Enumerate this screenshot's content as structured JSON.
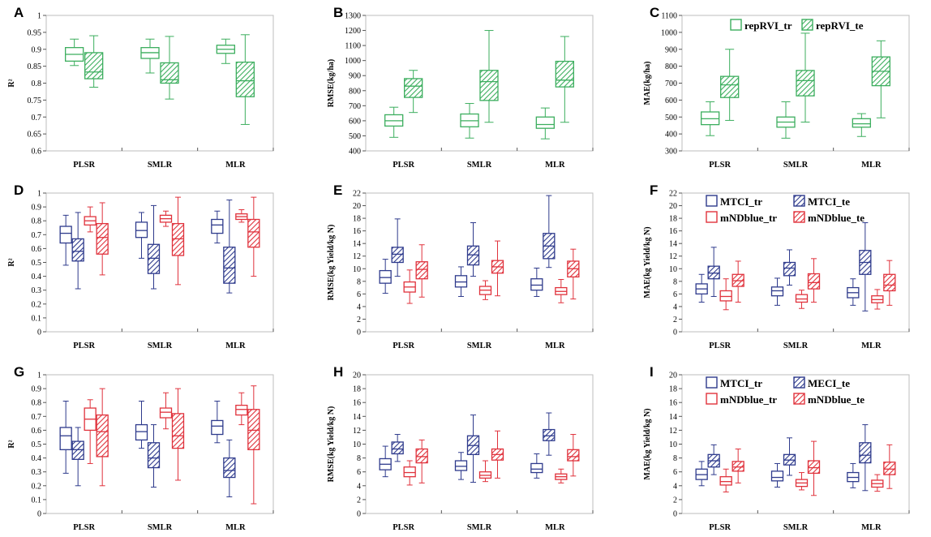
{
  "colors": {
    "green": "#3cae5e",
    "blue": "#2e3a8c",
    "red": "#e0323c"
  },
  "chart_data": [
    {
      "panel": "A",
      "type": "box",
      "title": "",
      "xlabel": "",
      "ylabel": "R²",
      "ylim": [
        0.6,
        1.0
      ],
      "yticks": [
        "0.6",
        "0.65",
        "0.7",
        "0.75",
        "0.8",
        "0.85",
        "0.9",
        "0.95",
        "1"
      ],
      "categories": [
        "PLSR",
        "SMLR",
        "MLR"
      ],
      "series": [
        {
          "name": "repRVI_tr",
          "color": "green",
          "hatch": false,
          "boxes": [
            [
              0.852,
              0.865,
              0.885,
              0.905,
              0.93
            ],
            [
              0.83,
              0.873,
              0.89,
              0.905,
              0.93
            ],
            [
              0.858,
              0.888,
              0.9,
              0.912,
              0.93
            ]
          ]
        },
        {
          "name": "repRVI_te",
          "color": "green",
          "hatch": true,
          "boxes": [
            [
              0.788,
              0.813,
              0.833,
              0.89,
              0.94
            ],
            [
              0.753,
              0.8,
              0.81,
              0.86,
              0.938
            ],
            [
              0.678,
              0.76,
              0.807,
              0.862,
              0.943
            ]
          ]
        }
      ]
    },
    {
      "panel": "B",
      "type": "box",
      "title": "",
      "xlabel": "",
      "ylabel": "RMSE(kg/ha)",
      "ylim": [
        400,
        1300
      ],
      "yticks": [
        "400",
        "500",
        "600",
        "700",
        "800",
        "900",
        "1000",
        "1100",
        "1200",
        "1300"
      ],
      "categories": [
        "PLSR",
        "SMLR",
        "MLR"
      ],
      "series": [
        {
          "name": "repRVI_tr",
          "color": "green",
          "hatch": false,
          "boxes": [
            [
              490,
              565,
              600,
              640,
              690
            ],
            [
              485,
              560,
              600,
              645,
              715
            ],
            [
              480,
              550,
              575,
              625,
              685
            ]
          ]
        },
        {
          "name": "repRVI_te",
          "color": "green",
          "hatch": true,
          "boxes": [
            [
              655,
              755,
              830,
              880,
              935
            ],
            [
              590,
              735,
              860,
              935,
              1200
            ],
            [
              590,
              825,
              870,
              995,
              1160
            ]
          ]
        }
      ]
    },
    {
      "panel": "C",
      "type": "box",
      "title": "",
      "xlabel": "",
      "ylabel": "MAE(kg/ha)",
      "ylim": [
        300,
        1100
      ],
      "yticks": [
        "300",
        "400",
        "500",
        "600",
        "700",
        "800",
        "900",
        "1000",
        "1100"
      ],
      "categories": [
        "PLSR",
        "SMLR",
        "MLR"
      ],
      "series": [
        {
          "name": "repRVI_tr",
          "color": "green",
          "hatch": false,
          "boxes": [
            [
              390,
              455,
              490,
              530,
              590
            ],
            [
              375,
              440,
              470,
              500,
              590
            ],
            [
              385,
              440,
              460,
              490,
              520
            ]
          ]
        },
        {
          "name": "repRVI_te",
          "color": "green",
          "hatch": true,
          "boxes": [
            [
              480,
              615,
              690,
              740,
              900
            ],
            [
              470,
              625,
              715,
              775,
              995
            ],
            [
              495,
              685,
              770,
              855,
              950
            ]
          ]
        }
      ]
    },
    {
      "panel": "D",
      "type": "box",
      "title": "",
      "xlabel": "",
      "ylabel": "R²",
      "ylim": [
        0,
        1
      ],
      "yticks": [
        "0",
        "0.1",
        "0.2",
        "0.3",
        "0.4",
        "0.5",
        "0.6",
        "0.7",
        "0.8",
        "0.9",
        "1"
      ],
      "categories": [
        "PLSR",
        "SMLR",
        "MLR"
      ],
      "series": [
        {
          "name": "MTCI_tr",
          "color": "blue",
          "hatch": false,
          "boxes": [
            [
              0.48,
              0.64,
              0.71,
              0.76,
              0.84
            ],
            [
              0.53,
              0.68,
              0.73,
              0.79,
              0.86
            ],
            [
              0.64,
              0.71,
              0.77,
              0.81,
              0.87
            ]
          ]
        },
        {
          "name": "MTCI_te",
          "color": "blue",
          "hatch": true,
          "boxes": [
            [
              0.31,
              0.51,
              0.58,
              0.67,
              0.86
            ],
            [
              0.31,
              0.42,
              0.53,
              0.63,
              0.91
            ],
            [
              0.28,
              0.35,
              0.46,
              0.61,
              0.95
            ]
          ]
        },
        {
          "name": "mNDblue_tr",
          "color": "red",
          "hatch": false,
          "boxes": [
            [
              0.72,
              0.77,
              0.8,
              0.83,
              0.9
            ],
            [
              0.76,
              0.79,
              0.815,
              0.84,
              0.87
            ],
            [
              0.79,
              0.81,
              0.83,
              0.85,
              0.88
            ]
          ]
        },
        {
          "name": "mNDblue_te",
          "color": "red",
          "hatch": true,
          "boxes": [
            [
              0.41,
              0.56,
              0.68,
              0.78,
              0.93
            ],
            [
              0.34,
              0.55,
              0.67,
              0.78,
              0.97
            ],
            [
              0.4,
              0.61,
              0.72,
              0.81,
              0.97
            ]
          ]
        }
      ]
    },
    {
      "panel": "E",
      "type": "box",
      "title": "",
      "xlabel": "",
      "ylabel": "RMSE(kg Yield/kg N)",
      "ylim": [
        0,
        22
      ],
      "yticks": [
        "0",
        "2",
        "4",
        "6",
        "8",
        "10",
        "12",
        "14",
        "16",
        "18",
        "20",
        "22"
      ],
      "categories": [
        "PLSR",
        "SMLR",
        "MLR"
      ],
      "series": [
        {
          "name": "MTCI_tr",
          "color": "blue",
          "hatch": false,
          "boxes": [
            [
              6.1,
              7.7,
              8.6,
              9.7,
              11.5
            ],
            [
              5.6,
              7.1,
              7.9,
              8.9,
              10.3
            ],
            [
              5.6,
              6.6,
              7.4,
              8.4,
              10.1
            ]
          ]
        },
        {
          "name": "MTCI_te",
          "color": "blue",
          "hatch": true,
          "boxes": [
            [
              8.8,
              11.0,
              12.3,
              13.4,
              17.9
            ],
            [
              8.8,
              10.6,
              12.2,
              13.6,
              17.3
            ],
            [
              10.2,
              11.6,
              13.6,
              15.6,
              21.6
            ]
          ]
        },
        {
          "name": "mNDblue_tr",
          "color": "red",
          "hatch": false,
          "boxes": [
            [
              4.5,
              6.3,
              7.1,
              7.9,
              9.8
            ],
            [
              5.1,
              5.9,
              6.6,
              7.2,
              8.1
            ],
            [
              4.6,
              5.9,
              6.4,
              7.0,
              8.3
            ]
          ]
        },
        {
          "name": "mNDblue_te",
          "color": "red",
          "hatch": true,
          "boxes": [
            [
              5.5,
              8.4,
              9.9,
              11.1,
              13.8
            ],
            [
              5.7,
              9.3,
              10.3,
              11.3,
              14.4
            ],
            [
              5.2,
              8.7,
              10.0,
              11.2,
              13.1
            ]
          ]
        }
      ]
    },
    {
      "panel": "F",
      "type": "box",
      "title": "",
      "xlabel": "",
      "ylabel": "MAE(kg Yield/kg N)",
      "ylim": [
        0,
        22
      ],
      "yticks": [
        "0",
        "2",
        "4",
        "6",
        "8",
        "10",
        "12",
        "14",
        "16",
        "18",
        "20",
        "22"
      ],
      "categories": [
        "PLSR",
        "SMLR",
        "MLR"
      ],
      "series": [
        {
          "name": "MTCI_tr",
          "color": "blue",
          "hatch": false,
          "boxes": [
            [
              4.7,
              6.0,
              6.8,
              7.6,
              9.1
            ],
            [
              4.2,
              5.7,
              6.5,
              7.1,
              8.5
            ],
            [
              4.2,
              5.4,
              6.2,
              7.0,
              8.4
            ]
          ]
        },
        {
          "name": "MTCI_te",
          "color": "blue",
          "hatch": true,
          "boxes": [
            [
              5.6,
              8.4,
              9.3,
              10.4,
              13.4
            ],
            [
              7.4,
              8.9,
              10.1,
              11.0,
              13.0
            ],
            [
              3.3,
              9.1,
              11.0,
              12.9,
              17.3
            ]
          ]
        },
        {
          "name": "mNDblue_tr",
          "color": "red",
          "hatch": false,
          "boxes": [
            [
              3.5,
              4.9,
              5.6,
              6.5,
              8.4
            ],
            [
              3.7,
              4.7,
              5.2,
              5.9,
              6.6
            ],
            [
              3.6,
              4.6,
              5.1,
              5.7,
              6.7
            ]
          ]
        },
        {
          "name": "mNDblue_te",
          "color": "red",
          "hatch": true,
          "boxes": [
            [
              4.7,
              7.2,
              8.1,
              9.1,
              11.2
            ],
            [
              4.7,
              6.8,
              7.8,
              9.2,
              11.6
            ],
            [
              4.2,
              6.5,
              7.4,
              9.1,
              11.3
            ]
          ]
        }
      ]
    },
    {
      "panel": "G",
      "type": "box",
      "title": "",
      "xlabel": "",
      "ylabel": "R²",
      "ylim": [
        0,
        1
      ],
      "yticks": [
        "0",
        "0.1",
        "0.2",
        "0.3",
        "0.4",
        "0.5",
        "0.6",
        "0.7",
        "0.8",
        "0.9",
        "1"
      ],
      "categories": [
        "PLSR",
        "SMLR",
        "MLR"
      ],
      "series": [
        {
          "name": "MTCI_tr",
          "color": "blue",
          "hatch": false,
          "boxes": [
            [
              0.29,
              0.46,
              0.56,
              0.62,
              0.81
            ],
            [
              0.47,
              0.53,
              0.59,
              0.64,
              0.81
            ],
            [
              0.51,
              0.57,
              0.63,
              0.67,
              0.81
            ]
          ]
        },
        {
          "name": "MECI_te",
          "color": "blue",
          "hatch": true,
          "boxes": [
            [
              0.2,
              0.39,
              0.46,
              0.52,
              0.62
            ],
            [
              0.19,
              0.33,
              0.4,
              0.51,
              0.64
            ],
            [
              0.12,
              0.26,
              0.31,
              0.4,
              0.53
            ]
          ]
        },
        {
          "name": "mNDblue_tr",
          "color": "red",
          "hatch": false,
          "boxes": [
            [
              0.36,
              0.6,
              0.68,
              0.76,
              0.82
            ],
            [
              0.61,
              0.69,
              0.73,
              0.76,
              0.87
            ],
            [
              0.64,
              0.71,
              0.75,
              0.78,
              0.87
            ]
          ]
        },
        {
          "name": "mNDblue_te",
          "color": "red",
          "hatch": true,
          "boxes": [
            [
              0.2,
              0.41,
              0.59,
              0.71,
              0.9
            ],
            [
              0.24,
              0.47,
              0.56,
              0.72,
              0.9
            ],
            [
              0.07,
              0.46,
              0.6,
              0.75,
              0.92
            ]
          ]
        }
      ]
    },
    {
      "panel": "H",
      "type": "box",
      "title": "",
      "xlabel": "",
      "ylabel": "RMSE(kg Yield/kg N)",
      "ylim": [
        0,
        20
      ],
      "yticks": [
        "0",
        "2",
        "4",
        "6",
        "8",
        "10",
        "12",
        "14",
        "16",
        "18",
        "20"
      ],
      "categories": [
        "PLSR",
        "SMLR",
        "MLR"
      ],
      "series": [
        {
          "name": "MTCI_tr",
          "color": "blue",
          "hatch": false,
          "boxes": [
            [
              5.3,
              6.3,
              7.1,
              7.9,
              9.7
            ],
            [
              4.9,
              6.2,
              6.8,
              7.6,
              8.8
            ],
            [
              5.1,
              5.9,
              6.4,
              7.2,
              8.6
            ]
          ]
        },
        {
          "name": "MECI_te",
          "color": "blue",
          "hatch": true,
          "boxes": [
            [
              7.5,
              8.6,
              9.3,
              10.3,
              11.4
            ],
            [
              4.5,
              8.5,
              9.8,
              11.2,
              14.2
            ],
            [
              8.4,
              10.5,
              11.2,
              12.1,
              14.5
            ]
          ]
        },
        {
          "name": "mNDblue_tr",
          "color": "red",
          "hatch": false,
          "boxes": [
            [
              4.1,
              5.3,
              5.9,
              6.7,
              7.6
            ],
            [
              4.6,
              5.1,
              5.5,
              6.0,
              7.6
            ],
            [
              4.4,
              4.9,
              5.3,
              5.7,
              6.4
            ]
          ]
        },
        {
          "name": "mNDblue_te",
          "color": "red",
          "hatch": true,
          "boxes": [
            [
              4.4,
              7.3,
              8.2,
              9.3,
              10.6
            ],
            [
              5.1,
              7.7,
              8.5,
              9.3,
              11.9
            ],
            [
              5.4,
              7.6,
              8.2,
              9.2,
              11.4
            ]
          ]
        }
      ]
    },
    {
      "panel": "I",
      "type": "box",
      "title": "",
      "xlabel": "",
      "ylabel": "MAE(kg Yield/kg N)",
      "ylim": [
        0,
        20
      ],
      "yticks": [
        "0",
        "2",
        "4",
        "6",
        "8",
        "10",
        "12",
        "14",
        "16",
        "18",
        "20"
      ],
      "categories": [
        "PLSR",
        "SMLR",
        "MLR"
      ],
      "series": [
        {
          "name": "MTCI_tr",
          "color": "blue",
          "hatch": false,
          "boxes": [
            [
              4.0,
              4.9,
              5.6,
              6.4,
              7.5
            ],
            [
              3.8,
              4.7,
              5.2,
              6.1,
              7.2
            ],
            [
              3.7,
              4.6,
              5.2,
              5.9,
              7.2
            ]
          ]
        },
        {
          "name": "MECI_te",
          "color": "blue",
          "hatch": true,
          "boxes": [
            [
              5.6,
              6.7,
              7.6,
              8.5,
              9.9
            ],
            [
              5.5,
              7.0,
              7.7,
              8.5,
              10.9
            ],
            [
              3.3,
              7.3,
              8.4,
              10.2,
              12.8
            ]
          ]
        },
        {
          "name": "mNDblue_tr",
          "color": "red",
          "hatch": false,
          "boxes": [
            [
              3.1,
              4.1,
              4.6,
              5.3,
              6.4
            ],
            [
              3.4,
              3.9,
              4.4,
              4.9,
              5.9
            ],
            [
              3.2,
              3.8,
              4.3,
              4.8,
              5.6
            ]
          ]
        },
        {
          "name": "mNDblue_te",
          "color": "red",
          "hatch": true,
          "boxes": [
            [
              4.4,
              6.1,
              6.7,
              7.5,
              9.3
            ],
            [
              2.6,
              5.8,
              6.6,
              7.6,
              10.4
            ],
            [
              3.6,
              5.6,
              6.4,
              7.4,
              9.9
            ]
          ]
        }
      ]
    }
  ]
}
